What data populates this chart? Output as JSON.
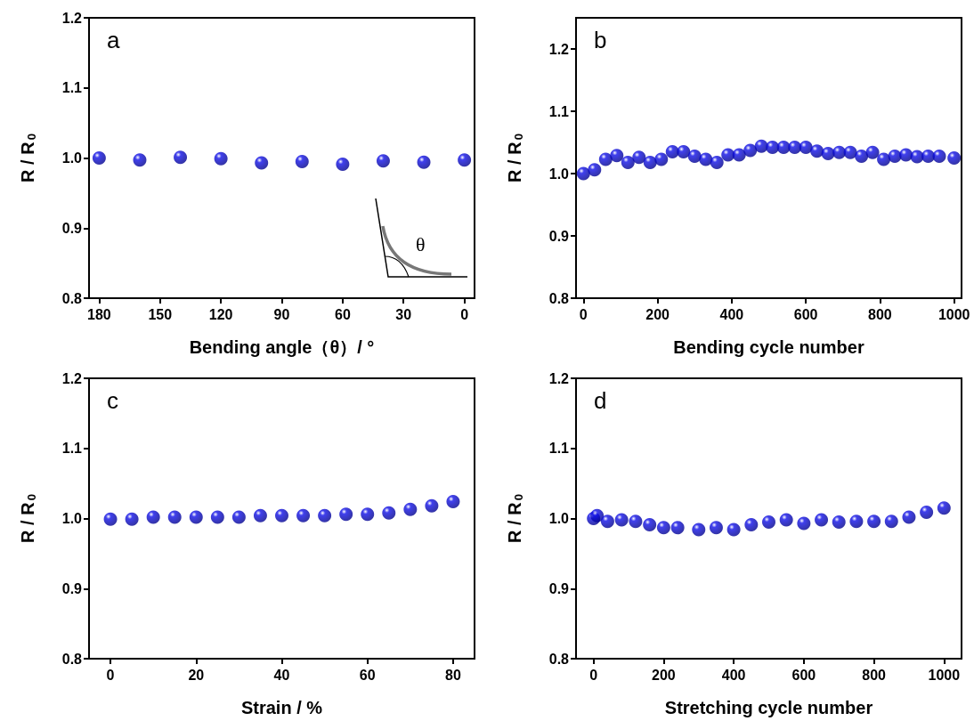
{
  "chart_data": [
    {
      "type": "scatter",
      "xlabel": "Bending angle（θ）/ °",
      "ylabel": "R / R$_{0}$",
      "annotations": [
        "a",
        "θ"
      ],
      "marker": "circle",
      "color": "#1010e8",
      "x": [
        180,
        160,
        140,
        120,
        100,
        80,
        60,
        40,
        20,
        0
      ],
      "values": [
        1.0,
        0.997,
        1.001,
        0.999,
        0.993,
        0.995,
        0.991,
        0.996,
        0.994,
        0.997
      ],
      "xlim": [
        185,
        -5
      ],
      "xticks": [
        180,
        150,
        120,
        90,
        60,
        30,
        0
      ],
      "ylim": [
        0.8,
        1.2
      ],
      "yticks": [
        {
          "value": 0.8,
          "label": "0.8"
        },
        {
          "value": 0.9,
          "label": "0.9"
        },
        {
          "value": 1.0,
          "label": "1.0"
        },
        {
          "value": 1.1,
          "label": "1.1"
        },
        {
          "value": 1.2,
          "label": "1.2"
        }
      ],
      "grid": false
    },
    {
      "type": "scatter",
      "xlabel": "Bending cycle number",
      "ylabel": "R / R$_{0}$",
      "annotations": [
        "b"
      ],
      "marker": "circle",
      "color": "#1010e8",
      "x": [
        0,
        30,
        60,
        90,
        120,
        150,
        180,
        210,
        240,
        270,
        300,
        330,
        360,
        390,
        420,
        450,
        480,
        510,
        540,
        570,
        600,
        630,
        660,
        690,
        720,
        750,
        780,
        810,
        840,
        870,
        900,
        930,
        960,
        1000
      ],
      "values": [
        1.0,
        1.006,
        1.023,
        1.029,
        1.018,
        1.026,
        1.018,
        1.023,
        1.035,
        1.035,
        1.028,
        1.023,
        1.018,
        1.03,
        1.03,
        1.037,
        1.044,
        1.042,
        1.042,
        1.042,
        1.042,
        1.036,
        1.032,
        1.034,
        1.034,
        1.028,
        1.034,
        1.023,
        1.028,
        1.03,
        1.027,
        1.028,
        1.028,
        1.025
      ],
      "xlim": [
        -20,
        1020
      ],
      "xticks": [
        0,
        200,
        400,
        600,
        800,
        1000
      ],
      "ylim": [
        0.8,
        1.25
      ],
      "yticks": [
        {
          "value": 0.8,
          "label": "0.8"
        },
        {
          "value": 0.9,
          "label": "0.9"
        },
        {
          "value": 1.0,
          "label": "1.0"
        },
        {
          "value": 1.1,
          "label": "1.1"
        },
        {
          "value": 1.2,
          "label": "1.2"
        }
      ],
      "grid": false
    },
    {
      "type": "scatter",
      "xlabel": "Strain / %",
      "ylabel": "R / R$_{0}$",
      "annotations": [
        "c"
      ],
      "marker": "circle",
      "color": "#1010e8",
      "x": [
        0,
        5,
        10,
        15,
        20,
        25,
        30,
        35,
        40,
        45,
        50,
        55,
        60,
        65,
        70,
        75,
        80
      ],
      "values": [
        0.999,
        0.999,
        1.002,
        1.002,
        1.002,
        1.002,
        1.002,
        1.004,
        1.004,
        1.004,
        1.004,
        1.006,
        1.006,
        1.008,
        1.013,
        1.018,
        1.024
      ],
      "xlim": [
        -5,
        85
      ],
      "xticks": [
        0,
        20,
        40,
        60,
        80
      ],
      "ylim": [
        0.8,
        1.2
      ],
      "yticks": [
        {
          "value": 0.8,
          "label": "0.8"
        },
        {
          "value": 0.9,
          "label": "0.9"
        },
        {
          "value": 1.0,
          "label": "1.0"
        },
        {
          "value": 1.1,
          "label": "1.1"
        },
        {
          "value": 1.2,
          "label": "1.2"
        }
      ],
      "grid": false
    },
    {
      "type": "scatter",
      "xlabel": "Stretching cycle number",
      "ylabel": "R / R$_{0}$",
      "annotations": [
        "d"
      ],
      "marker": "circle",
      "color": "#1010e8",
      "x": [
        0,
        10,
        40,
        80,
        120,
        160,
        200,
        240,
        300,
        350,
        400,
        450,
        500,
        550,
        600,
        650,
        700,
        750,
        800,
        850,
        900,
        950,
        1000
      ],
      "values": [
        1.0,
        1.004,
        0.996,
        0.998,
        0.996,
        0.991,
        0.987,
        0.987,
        0.984,
        0.987,
        0.984,
        0.991,
        0.995,
        0.998,
        0.993,
        0.998,
        0.995,
        0.996,
        0.996,
        0.996,
        1.002,
        1.009,
        1.015
      ],
      "xlim": [
        -50,
        1050
      ],
      "xticks": [
        0,
        200,
        400,
        600,
        800,
        1000
      ],
      "ylim": [
        0.8,
        1.2
      ],
      "yticks": [
        {
          "value": 0.8,
          "label": "0.8"
        },
        {
          "value": 0.9,
          "label": "0.9"
        },
        {
          "value": 1.0,
          "label": "1.0"
        },
        {
          "value": 1.1,
          "label": "1.1"
        },
        {
          "value": 1.2,
          "label": "1.2"
        }
      ],
      "grid": false
    }
  ]
}
